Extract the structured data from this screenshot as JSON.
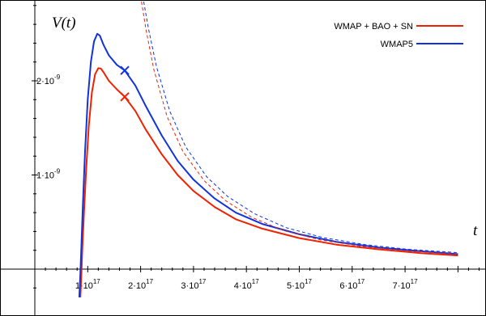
{
  "chart_data": {
    "type": "line",
    "title": "",
    "xlabel": "t",
    "ylabel": "V(t)",
    "xlim": [
      0,
      8e+17
    ],
    "ylim": [
      -3e-10,
      2.8e-09
    ],
    "x_ticks": [
      {
        "value": 1e+17,
        "mant": "1",
        "exp": "17"
      },
      {
        "value": 2e+17,
        "mant": "2",
        "exp": "17"
      },
      {
        "value": 3e+17,
        "mant": "3",
        "exp": "17"
      },
      {
        "value": 4e+17,
        "mant": "4",
        "exp": "17"
      },
      {
        "value": 5e+17,
        "mant": "5",
        "exp": "17"
      },
      {
        "value": 6e+17,
        "mant": "6",
        "exp": "17"
      },
      {
        "value": 7e+17,
        "mant": "7",
        "exp": "17"
      }
    ],
    "y_ticks": [
      {
        "value": 1e-09,
        "mant": "1",
        "exp": "-9"
      },
      {
        "value": 2e-09,
        "mant": "2",
        "exp": "-9"
      }
    ],
    "tick_times_symbol": "·",
    "tick_base": "10",
    "legend_position": "top-right",
    "series": [
      {
        "name": "WMAP + BAO + SN",
        "color": "#ee2200",
        "style": "solid",
        "marker": {
          "x": 1.7e+17,
          "y": 1.83e-09
        },
        "points": [
          [
            8.6e+16,
            -3e-10
          ],
          [
            8.8e+16,
            -5e-11
          ],
          [
            9e+16,
            2.5e-10
          ],
          [
            9.3e+16,
            6e-10
          ],
          [
            9.7e+16,
            1.05e-09
          ],
          [
            1.02e+17,
            1.52e-09
          ],
          [
            1.08e+17,
            1.88e-09
          ],
          [
            1.14e+17,
            2.07e-09
          ],
          [
            1.2e+17,
            2.135e-09
          ],
          [
            1.25e+17,
            2.13e-09
          ],
          [
            1.3e+17,
            2.09e-09
          ],
          [
            1.4e+17,
            2e-09
          ],
          [
            1.55e+17,
            1.91e-09
          ],
          [
            1.7e+17,
            1.83e-09
          ],
          [
            1.9e+17,
            1.68e-09
          ],
          [
            2.1e+17,
            1.48e-09
          ],
          [
            2.4e+17,
            1.22e-09
          ],
          [
            2.7e+17,
            1e-09
          ],
          [
            3e+17,
            8.3e-10
          ],
          [
            3.4e+17,
            6.6e-10
          ],
          [
            3.8e+17,
            5.3e-10
          ],
          [
            4.3e+17,
            4.3e-10
          ],
          [
            5e+17,
            3.3e-10
          ],
          [
            5.7e+17,
            2.6e-10
          ],
          [
            6.5e+17,
            2.1e-10
          ],
          [
            7.3e+17,
            1.7e-10
          ],
          [
            8e+17,
            1.45e-10
          ]
        ]
      },
      {
        "name": "WMAP5",
        "color": "#1133dd",
        "style": "solid",
        "marker": {
          "x": 1.7e+17,
          "y": 2.11e-09
        },
        "points": [
          [
            8.4e+16,
            -3e-10
          ],
          [
            8.6e+16,
            -5e-11
          ],
          [
            8.8e+16,
            2.5e-10
          ],
          [
            9.1e+16,
            7e-10
          ],
          [
            9.5e+16,
            1.25e-09
          ],
          [
            1e+17,
            1.8e-09
          ],
          [
            1.06e+17,
            2.2e-09
          ],
          [
            1.12e+17,
            2.42e-09
          ],
          [
            1.18e+17,
            2.5e-09
          ],
          [
            1.23e+17,
            2.48e-09
          ],
          [
            1.3e+17,
            2.38e-09
          ],
          [
            1.4e+17,
            2.27e-09
          ],
          [
            1.55e+17,
            2.17e-09
          ],
          [
            1.7e+17,
            2.11e-09
          ],
          [
            1.9e+17,
            1.95e-09
          ],
          [
            2.1e+17,
            1.73e-09
          ],
          [
            2.4e+17,
            1.42e-09
          ],
          [
            2.7e+17,
            1.15e-09
          ],
          [
            3e+17,
            9.5e-10
          ],
          [
            3.4e+17,
            7.5e-10
          ],
          [
            3.8e+17,
            6e-10
          ],
          [
            4.3e+17,
            4.8e-10
          ],
          [
            5e+17,
            3.7e-10
          ],
          [
            5.7e+17,
            2.9e-10
          ],
          [
            6.5e+17,
            2.3e-10
          ],
          [
            7.3e+17,
            1.9e-10
          ],
          [
            8e+17,
            1.6e-10
          ]
        ]
      },
      {
        "name": "",
        "color": "#ee2200",
        "style": "dashed",
        "points": [
          [
            2e+17,
            2.9e-09
          ],
          [
            2.1e+17,
            2.55e-09
          ],
          [
            2.25e+17,
            2.12e-09
          ],
          [
            2.5e+17,
            1.62e-09
          ],
          [
            2.8e+17,
            1.25e-09
          ],
          [
            3.2e+17,
            9.4e-10
          ],
          [
            3.6e+17,
            7.3e-10
          ],
          [
            4.1e+17,
            5.5e-10
          ],
          [
            4.7e+17,
            4.1e-10
          ],
          [
            5.4e+17,
            3.1e-10
          ],
          [
            6.2e+17,
            2.4e-10
          ],
          [
            7e+17,
            1.95e-10
          ],
          [
            8e+17,
            1.6e-10
          ]
        ]
      },
      {
        "name": "",
        "color": "#1133dd",
        "style": "dashed",
        "points": [
          [
            2.04e+17,
            2.9e-09
          ],
          [
            2.15e+17,
            2.55e-09
          ],
          [
            2.3e+17,
            2.15e-09
          ],
          [
            2.55e+17,
            1.68e-09
          ],
          [
            2.85e+17,
            1.3e-09
          ],
          [
            3.25e+17,
            9.8e-10
          ],
          [
            3.65e+17,
            7.7e-10
          ],
          [
            4.15e+17,
            5.9e-10
          ],
          [
            4.75e+17,
            4.4e-10
          ],
          [
            5.45e+17,
            3.35e-10
          ],
          [
            6.25e+17,
            2.6e-10
          ],
          [
            7.05e+17,
            2.1e-10
          ],
          [
            8e+17,
            1.75e-10
          ]
        ]
      }
    ]
  }
}
